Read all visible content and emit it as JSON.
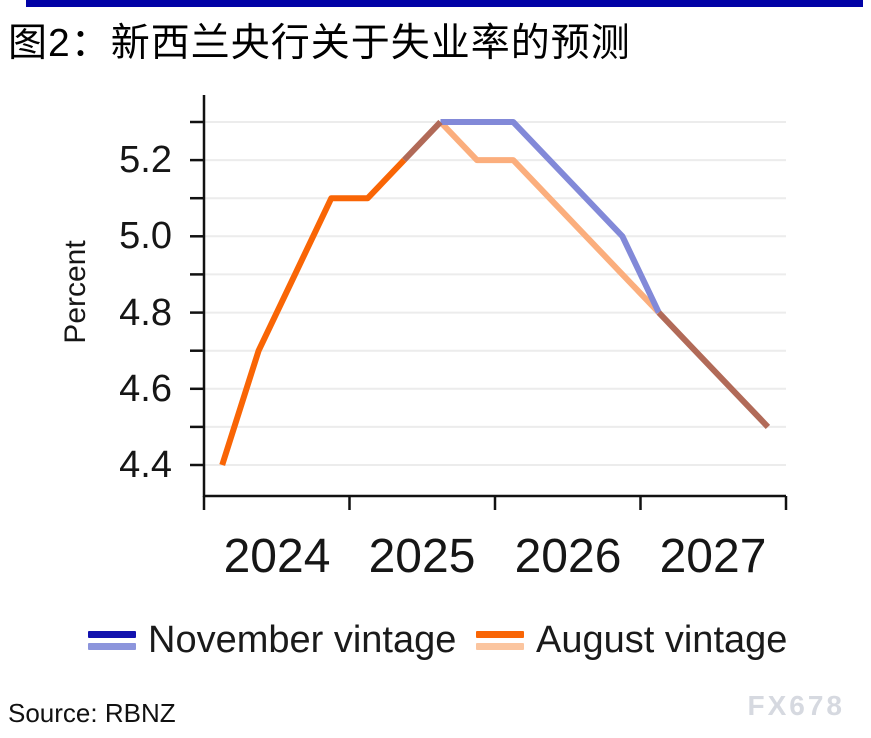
{
  "accent_bar_color": "#0102A6",
  "header": {
    "title": "图2：新西兰央行关于失业率的预测"
  },
  "chart_data": {
    "type": "line",
    "title": "图2：新西兰央行关于失业率的预测",
    "xlabel": "",
    "ylabel": "Percent",
    "ylim": [
      4.4,
      5.3
    ],
    "grid": "horizontal",
    "legend_position": "bottom",
    "x_tick_labels": [
      "2024",
      "2025",
      "2026",
      "2027"
    ],
    "y_tick_labels": [
      "5.2",
      "5.0",
      "4.8",
      "4.6",
      "4.4"
    ],
    "y_grid_values": [
      4.4,
      4.5,
      4.6,
      4.7,
      4.8,
      4.9,
      5.0,
      5.1,
      5.2,
      5.3
    ],
    "x": [
      "2024Q1",
      "2024Q2",
      "2024Q3",
      "2024Q4",
      "2025Q1",
      "2025Q2",
      "2025Q3",
      "2025Q4",
      "2026Q1",
      "2026Q2",
      "2026Q3",
      "2026Q4",
      "2027Q1",
      "2027Q2",
      "2027Q3",
      "2027Q4"
    ],
    "series": [
      {
        "name": "November vintage",
        "values": [
          4.4,
          4.7,
          4.9,
          5.1,
          5.1,
          5.2,
          5.3,
          5.3,
          5.3,
          5.2,
          5.1,
          5.0,
          4.8,
          4.7,
          4.6,
          4.5
        ],
        "color_actual": "#1212AE",
        "color_forecast": "#8289D8"
      },
      {
        "name": "August vintage",
        "values": [
          4.4,
          4.7,
          4.9,
          5.1,
          5.1,
          5.2,
          5.3,
          5.2,
          5.2,
          5.1,
          5.0,
          4.9,
          4.8,
          4.7,
          4.6,
          4.5
        ],
        "color_actual": "#F96505",
        "color_forecast": "#FBAE7D"
      }
    ],
    "overlap_color": "#B16A58",
    "segments": [
      {
        "series": 1,
        "from": 6,
        "to": 12,
        "shade": "forecast"
      },
      {
        "series": 0,
        "from": 6,
        "to": 12,
        "shade": "forecast"
      },
      {
        "series": 0,
        "from": 12,
        "to": 15,
        "shade": "overlap"
      },
      {
        "series": 0,
        "from": 5,
        "to": 6,
        "shade": "overlap"
      },
      {
        "series": 1,
        "from": 0,
        "to": 5,
        "shade": "actual"
      }
    ]
  },
  "legend": {
    "items": [
      {
        "color_top": "#1212AE",
        "color_bottom": "#8C95DC"
      },
      {
        "color_top": "#F96505",
        "color_bottom": "#FBC59F"
      }
    ]
  },
  "footer": {
    "source": "Source: RBNZ",
    "watermark": "FX678"
  }
}
